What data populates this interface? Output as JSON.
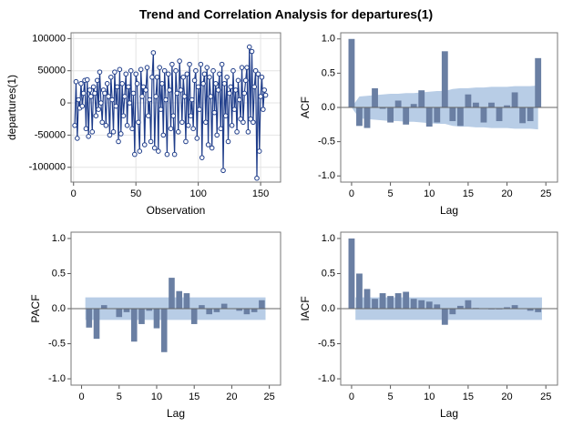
{
  "title": "Trend and Correlation Analysis for departures(1)",
  "chart_data": [
    {
      "type": "line",
      "xlabel": "Observation",
      "ylabel": "departures(1)",
      "grid": true,
      "xlim": [
        -2,
        166
      ],
      "ylim": [
        -123000,
        109000
      ],
      "xticks": [
        0,
        50,
        100,
        150
      ],
      "yticks": [
        -100000,
        -50000,
        0,
        50000,
        100000
      ],
      "series": [
        {
          "color": "#1f3d8a",
          "x": [
            1,
            2,
            3,
            4,
            5,
            6,
            7,
            8,
            9,
            10,
            11,
            12,
            13,
            14,
            15,
            16,
            17,
            18,
            19,
            20,
            21,
            22,
            23,
            24,
            25,
            26,
            27,
            28,
            29,
            30,
            31,
            32,
            33,
            34,
            35,
            36,
            37,
            38,
            39,
            40,
            41,
            42,
            43,
            44,
            45,
            46,
            47,
            48,
            49,
            50,
            51,
            52,
            53,
            54,
            55,
            56,
            57,
            58,
            59,
            60,
            61,
            62,
            63,
            64,
            65,
            66,
            67,
            68,
            69,
            70,
            71,
            72,
            73,
            74,
            75,
            76,
            77,
            78,
            79,
            80,
            81,
            82,
            83,
            84,
            85,
            86,
            87,
            88,
            89,
            90,
            91,
            92,
            93,
            94,
            95,
            96,
            97,
            98,
            99,
            100,
            101,
            102,
            103,
            104,
            105,
            106,
            107,
            108,
            109,
            110,
            111,
            112,
            113,
            114,
            115,
            116,
            117,
            118,
            119,
            120,
            121,
            122,
            123,
            124,
            125,
            126,
            127,
            128,
            129,
            130,
            131,
            132,
            133,
            134,
            135,
            136,
            137,
            138,
            139,
            140,
            141,
            142,
            143,
            144,
            145,
            146,
            147,
            148,
            149,
            150,
            151,
            152,
            153,
            154
          ],
          "values": [
            -35000,
            33000,
            -55000,
            5000,
            -8000,
            30000,
            -5000,
            15000,
            35000,
            -40000,
            36000,
            -52000,
            20000,
            10000,
            -45000,
            25000,
            15000,
            -20000,
            35000,
            -10000,
            48000,
            0,
            -30000,
            20000,
            15000,
            -35000,
            30000,
            10000,
            -50000,
            40000,
            5000,
            -45000,
            48000,
            -5000,
            25000,
            -60000,
            52000,
            -48000,
            30000,
            -20000,
            10000,
            45000,
            -35000,
            25000,
            0,
            50000,
            -40000,
            15000,
            -80000,
            45000,
            30000,
            -30000,
            -75000,
            52000,
            10000,
            25000,
            -65000,
            20000,
            55000,
            -20000,
            5000,
            -60000,
            40000,
            78000,
            -70000,
            10000,
            40000,
            -75000,
            55000,
            -10000,
            30000,
            -50000,
            50000,
            5000,
            -80000,
            45000,
            20000,
            -40000,
            60000,
            -20000,
            -80000,
            50000,
            15000,
            -45000,
            65000,
            20000,
            -30000,
            40000,
            10000,
            -60000,
            45000,
            -35000,
            60000,
            -20000,
            5000,
            -40000,
            35000,
            50000,
            -55000,
            25000,
            -10000,
            60000,
            -85000,
            30000,
            45000,
            -30000,
            55000,
            -65000,
            40000,
            10000,
            -70000,
            50000,
            -15000,
            30000,
            -50000,
            20000,
            45000,
            -40000,
            60000,
            -105000,
            30000,
            -20000,
            40000,
            -60000,
            15000,
            25000,
            -35000,
            50000,
            -10000,
            20000,
            -45000,
            35000,
            5000,
            -25000,
            55000,
            -30000,
            15000,
            35000,
            55000,
            -45000,
            87000,
            -25000,
            80000,
            -30000,
            25000,
            50000,
            -117000,
            45000,
            -75000,
            10000,
            40000,
            -10000,
            20000,
            12000
          ]
        }
      ]
    },
    {
      "type": "bar",
      "xlabel": "Lag",
      "ylabel": "ACF",
      "color": "#6a7fa3",
      "band_color": "#b8cde6",
      "xlim": [
        -1.4,
        26.5
      ],
      "ylim": [
        -1.09,
        1.09
      ],
      "xticks": [
        0,
        5,
        10,
        15,
        20,
        25
      ],
      "yticks": [
        {
          "value": -1,
          "label": "-1.0"
        },
        -0.5,
        {
          "value": 0,
          "label": "0.0"
        },
        0.5,
        {
          "value": 1,
          "label": "1.0"
        }
      ],
      "x": [
        0,
        1,
        2,
        3,
        4,
        5,
        6,
        7,
        8,
        9,
        10,
        11,
        12,
        13,
        14,
        15,
        16,
        17,
        18,
        19,
        20,
        21,
        22,
        23,
        24
      ],
      "values": [
        1.0,
        -0.27,
        -0.3,
        0.28,
        -0.02,
        -0.22,
        0.1,
        -0.25,
        0.05,
        0.25,
        -0.28,
        -0.22,
        0.82,
        -0.2,
        -0.27,
        0.19,
        0.07,
        -0.22,
        0.07,
        -0.2,
        0.03,
        0.22,
        -0.23,
        -0.2,
        0.72
      ],
      "band": {
        "x": [
          0,
          1,
          2,
          3,
          4,
          5,
          6,
          7,
          8,
          9,
          10,
          11,
          12,
          13,
          14,
          15,
          16,
          17,
          18,
          19,
          20,
          21,
          22,
          23,
          24
        ],
        "upper": [
          0,
          0.16,
          0.17,
          0.18,
          0.19,
          0.2,
          0.2,
          0.21,
          0.21,
          0.22,
          0.23,
          0.24,
          0.24,
          0.27,
          0.28,
          0.28,
          0.29,
          0.29,
          0.3,
          0.3,
          0.3,
          0.31,
          0.31,
          0.31,
          0.32
        ],
        "lower": [
          0,
          -0.16,
          -0.17,
          -0.18,
          -0.19,
          -0.2,
          -0.2,
          -0.21,
          -0.21,
          -0.22,
          -0.23,
          -0.24,
          -0.24,
          -0.27,
          -0.28,
          -0.28,
          -0.29,
          -0.29,
          -0.3,
          -0.3,
          -0.3,
          -0.31,
          -0.31,
          -0.31,
          -0.32
        ]
      }
    },
    {
      "type": "bar",
      "xlabel": "Lag",
      "ylabel": "PACF",
      "color": "#6a7fa3",
      "band_color": "#b8cde6",
      "xlim": [
        -1.4,
        26.5
      ],
      "ylim": [
        -1.09,
        1.09
      ],
      "xticks": [
        0,
        5,
        10,
        15,
        20,
        25
      ],
      "yticks": [
        {
          "value": -1,
          "label": "-1.0"
        },
        -0.5,
        {
          "value": 0,
          "label": "0.0"
        },
        0.5,
        {
          "value": 1,
          "label": "1.0"
        }
      ],
      "x": [
        1,
        2,
        3,
        4,
        5,
        6,
        7,
        8,
        9,
        10,
        11,
        12,
        13,
        14,
        15,
        16,
        17,
        18,
        19,
        20,
        21,
        22,
        23,
        24
      ],
      "values": [
        -0.27,
        -0.43,
        0.05,
        0.0,
        -0.12,
        -0.05,
        -0.47,
        -0.22,
        -0.03,
        -0.28,
        -0.62,
        0.44,
        0.25,
        0.22,
        -0.22,
        0.05,
        -0.08,
        -0.05,
        0.07,
        0.0,
        -0.03,
        -0.08,
        -0.05,
        0.12
      ],
      "band": {
        "x": [
          0.5,
          24.5
        ],
        "upper": [
          0.16,
          0.16
        ],
        "lower": [
          -0.16,
          -0.16
        ]
      }
    },
    {
      "type": "bar",
      "xlabel": "Lag",
      "ylabel": "IACF",
      "color": "#6a7fa3",
      "band_color": "#b8cde6",
      "xlim": [
        -1.4,
        26.5
      ],
      "ylim": [
        -1.09,
        1.09
      ],
      "xticks": [
        0,
        5,
        10,
        15,
        20,
        25
      ],
      "yticks": [
        {
          "value": -1,
          "label": "-1.0"
        },
        -0.5,
        {
          "value": 0,
          "label": "0.0"
        },
        0.5,
        {
          "value": 1,
          "label": "1.0"
        }
      ],
      "x": [
        0,
        1,
        2,
        3,
        4,
        5,
        6,
        7,
        8,
        9,
        10,
        11,
        12,
        13,
        14,
        15,
        16,
        17,
        18,
        19,
        20,
        21,
        22,
        23,
        24
      ],
      "values": [
        1.0,
        0.5,
        0.28,
        0.14,
        0.22,
        0.18,
        0.22,
        0.24,
        0.14,
        0.12,
        0.1,
        0.06,
        -0.23,
        -0.08,
        0.04,
        0.12,
        0.01,
        0.0,
        -0.01,
        -0.01,
        0.02,
        0.05,
        0.0,
        -0.03,
        -0.05
      ],
      "band": {
        "x": [
          0.5,
          24.5
        ],
        "upper": [
          0.16,
          0.16
        ],
        "lower": [
          -0.16,
          -0.16
        ]
      }
    }
  ]
}
